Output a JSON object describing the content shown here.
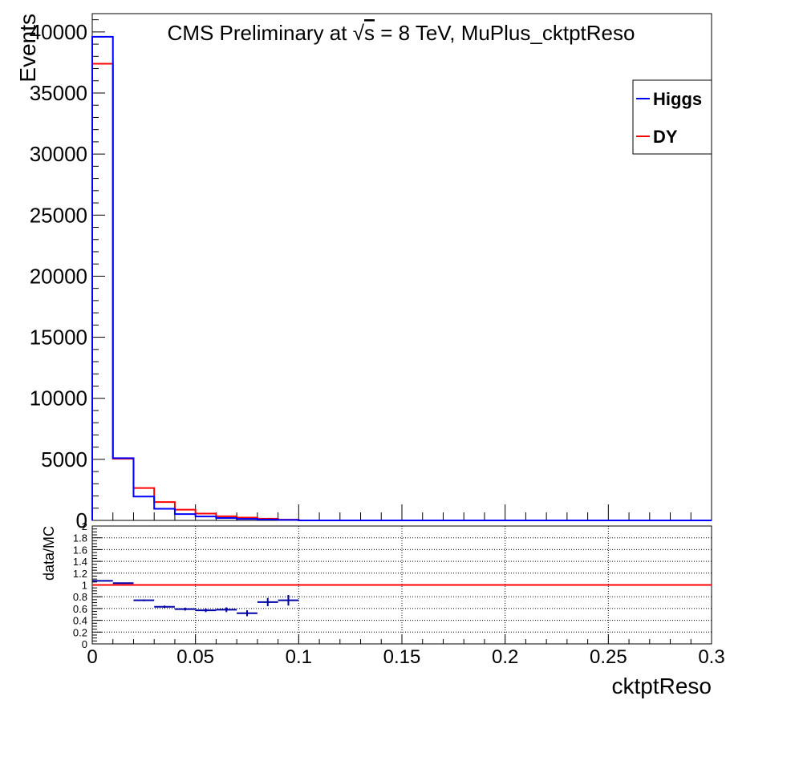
{
  "chart_data": [
    {
      "type": "histogram",
      "title": "CMS Preliminary at √s = 8 TeV, MuPlus_cktptReso",
      "title_parts": {
        "prefix": "CMS Preliminary at ",
        "sqrt_symbol": "√",
        "sqrt_arg": "s",
        "suffix": " = 8 TeV, MuPlus_cktptReso"
      },
      "ylabel": "Events",
      "xlim": [
        0,
        0.3
      ],
      "ylim": [
        0,
        41500
      ],
      "y_ticks": [
        0,
        5000,
        10000,
        15000,
        20000,
        25000,
        30000,
        35000,
        40000
      ],
      "y_tick_labels": [
        "0",
        "5000",
        "10000",
        "15000",
        "20000",
        "25000",
        "30000",
        "35000",
        "40000"
      ],
      "bin_edges": [
        0,
        0.01,
        0.02,
        0.03,
        0.04,
        0.05,
        0.06,
        0.07,
        0.08,
        0.09,
        0.1,
        0.11,
        0.12,
        0.13,
        0.14,
        0.15,
        0.16,
        0.17,
        0.18,
        0.19,
        0.2,
        0.21,
        0.22,
        0.23,
        0.24,
        0.25,
        0.26,
        0.27,
        0.28,
        0.29,
        0.3
      ],
      "series": [
        {
          "name": "Higgs",
          "color": "#0000ff",
          "values": [
            39600,
            5100,
            1950,
            950,
            520,
            320,
            200,
            120,
            70,
            40,
            0,
            0,
            0,
            0,
            0,
            0,
            0,
            0,
            0,
            0,
            0,
            0,
            0,
            0,
            0,
            0,
            0,
            0,
            0,
            0
          ]
        },
        {
          "name": "DY",
          "color": "#ff0000",
          "values": [
            37400,
            5050,
            2650,
            1500,
            880,
            560,
            340,
            230,
            140,
            60,
            0,
            0,
            0,
            0,
            0,
            0,
            0,
            0,
            0,
            0,
            0,
            0,
            0,
            0,
            0,
            0,
            0,
            0,
            0,
            0
          ]
        }
      ],
      "legend": {
        "placement": "top-right",
        "entries": [
          "Higgs",
          "DY"
        ]
      }
    },
    {
      "type": "ratio",
      "ylabel": "data/MC",
      "xlabel": "cktptReso",
      "xlim": [
        0,
        0.3
      ],
      "ylim": [
        0,
        2
      ],
      "x_ticks": [
        0,
        0.05,
        0.1,
        0.15,
        0.2,
        0.25,
        0.3
      ],
      "x_tick_labels": [
        "0",
        "0.05",
        "0.1",
        "0.15",
        "0.2",
        "0.25",
        "0.3"
      ],
      "y_ticks": [
        0,
        0.2,
        0.4,
        0.6,
        0.8,
        1,
        1.2,
        1.4,
        1.6,
        1.8,
        2
      ],
      "y_tick_labels": [
        "0",
        "0.2",
        "0.4",
        "0.6",
        "0.8",
        "1",
        "1.2",
        "1.4",
        "1.6",
        "1.8",
        "2"
      ],
      "grid": true,
      "reference_line": {
        "y": 1,
        "color": "#ff0000"
      },
      "points": {
        "color": "#0000aa",
        "x": [
          0.005,
          0.015,
          0.025,
          0.035,
          0.045,
          0.055,
          0.065,
          0.075,
          0.085,
          0.095
        ],
        "y": [
          1.07,
          1.03,
          0.74,
          0.63,
          0.59,
          0.57,
          0.58,
          0.52,
          0.71,
          0.74
        ],
        "yerr": [
          0.006,
          0.01,
          0.015,
          0.02,
          0.025,
          0.03,
          0.04,
          0.05,
          0.07,
          0.09
        ]
      }
    }
  ]
}
